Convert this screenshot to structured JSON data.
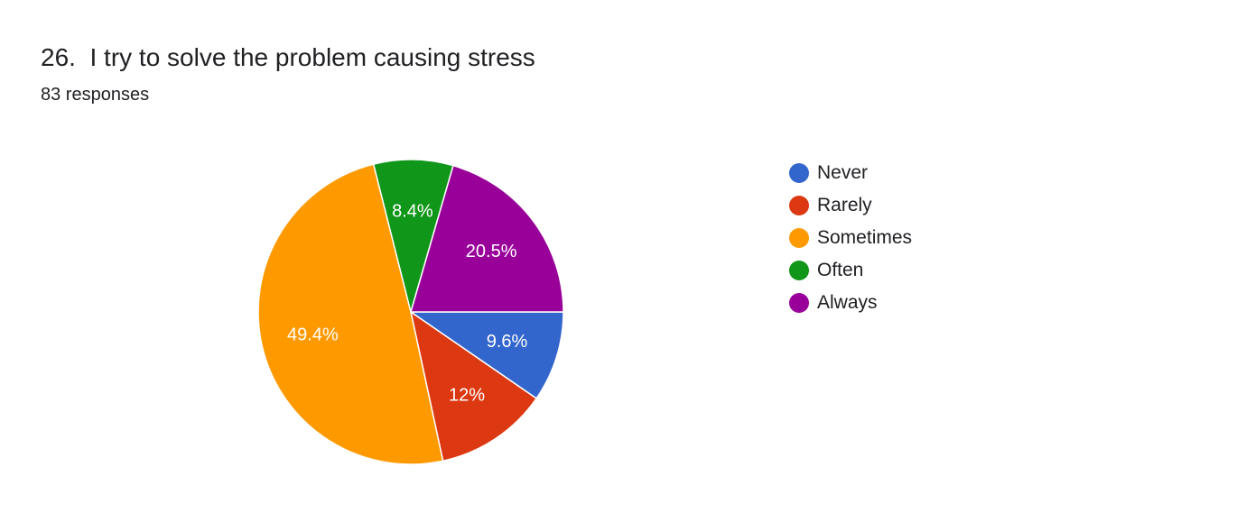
{
  "question": {
    "title": "26.  I try to solve the problem causing stress",
    "responses": "83 responses"
  },
  "colors": {
    "Never": "#3366cc",
    "Rarely": "#dc3912",
    "Sometimes": "#ff9900",
    "Often": "#109618",
    "Always": "#990099"
  },
  "chart_data": {
    "type": "pie",
    "title": "26.  I try to solve the problem causing stress",
    "categories": [
      "Never",
      "Rarely",
      "Sometimes",
      "Often",
      "Always"
    ],
    "values": [
      9.6,
      12,
      49.4,
      8.4,
      20.5
    ],
    "labels": [
      "9.6%",
      "12%",
      "49.4%",
      "8.4%",
      "20.5%"
    ],
    "counts_total": 83,
    "legend_position": "right"
  }
}
